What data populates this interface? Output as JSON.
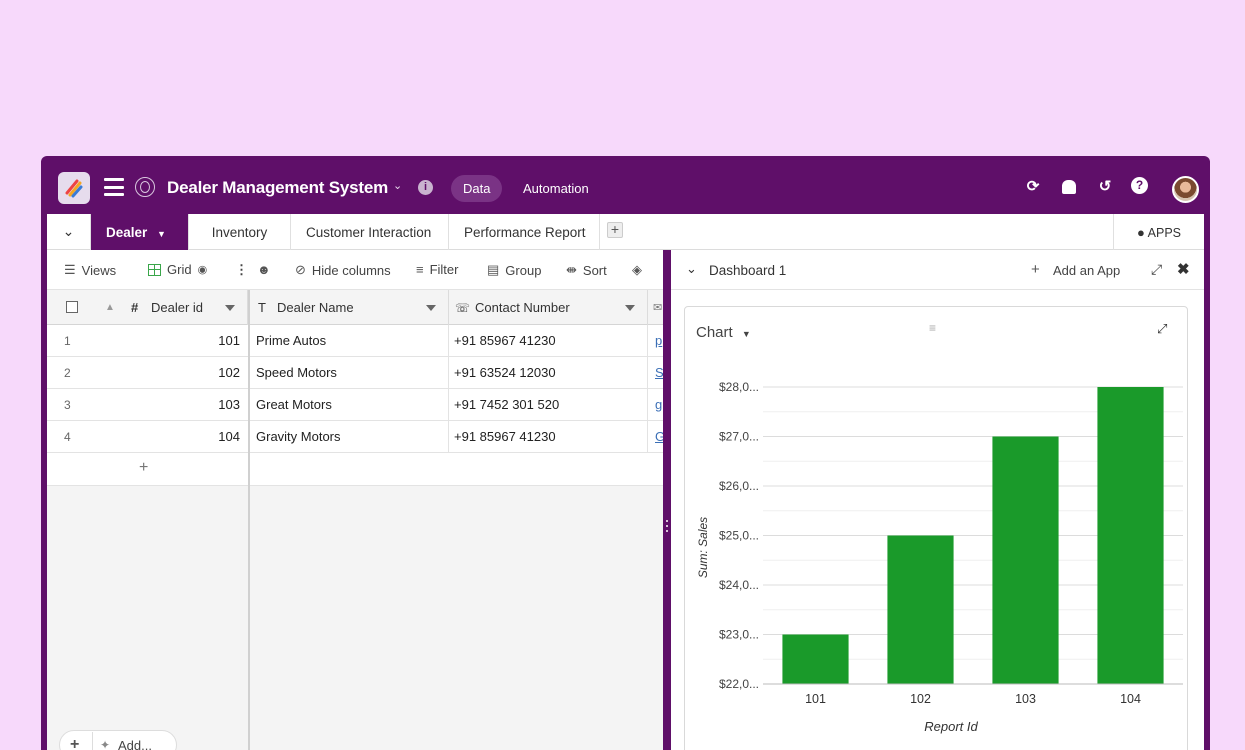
{
  "app": {
    "title": "Dealer Management System",
    "nav": {
      "data": "Data",
      "automation": "Automation"
    }
  },
  "tabs": [
    {
      "label": "Dealer",
      "active": true
    },
    {
      "label": "Inventory",
      "active": false
    },
    {
      "label": "Customer Interaction",
      "active": false
    },
    {
      "label": "Performance Report",
      "active": false
    }
  ],
  "apps_label": "APPS",
  "toolbar": {
    "views": "Views",
    "grid": "Grid",
    "hide_columns": "Hide columns",
    "filter": "Filter",
    "group": "Group",
    "sort": "Sort"
  },
  "table": {
    "columns": [
      {
        "label": "Dealer id",
        "type_icon": "#"
      },
      {
        "label": "Dealer Name",
        "type_icon": "T"
      },
      {
        "label": "Contact Number",
        "type_icon": "phone-icon"
      }
    ],
    "rows": [
      {
        "num": "1",
        "id": "101",
        "name": "Prime Autos",
        "contact": "+91 85967 41230",
        "link": "p"
      },
      {
        "num": "2",
        "id": "102",
        "name": "Speed Motors",
        "contact": "+91 63524 12030",
        "link": "S"
      },
      {
        "num": "3",
        "id": "103",
        "name": "Great Motors",
        "contact": "+91 7452 301 520",
        "link": "g"
      },
      {
        "num": "4",
        "id": "104",
        "name": "Gravity Motors",
        "contact": "+91 85967 41230",
        "link": "G"
      }
    ],
    "add_row_symbol": "+",
    "footer_add": "Add..."
  },
  "dashboard": {
    "title": "Dashboard 1",
    "add_app": "Add an App",
    "card_title": "Chart"
  },
  "chart_data": {
    "type": "bar",
    "categories": [
      "101",
      "102",
      "103",
      "104"
    ],
    "values": [
      23000,
      25000,
      27000,
      28000
    ],
    "xlabel": "Report Id",
    "ylabel": "Sum: Sales",
    "ylim": [
      22000,
      28000
    ],
    "yticks": [
      "$22,0...",
      "$23,0...",
      "$24,0...",
      "$25,0...",
      "$26,0...",
      "$27,0...",
      "$28,0..."
    ],
    "bar_color": "#1a9a2a",
    "grid": true
  },
  "colors": {
    "brand": "#5f0f69",
    "background": "#f7d9fb",
    "bar": "#1a9a2a"
  }
}
